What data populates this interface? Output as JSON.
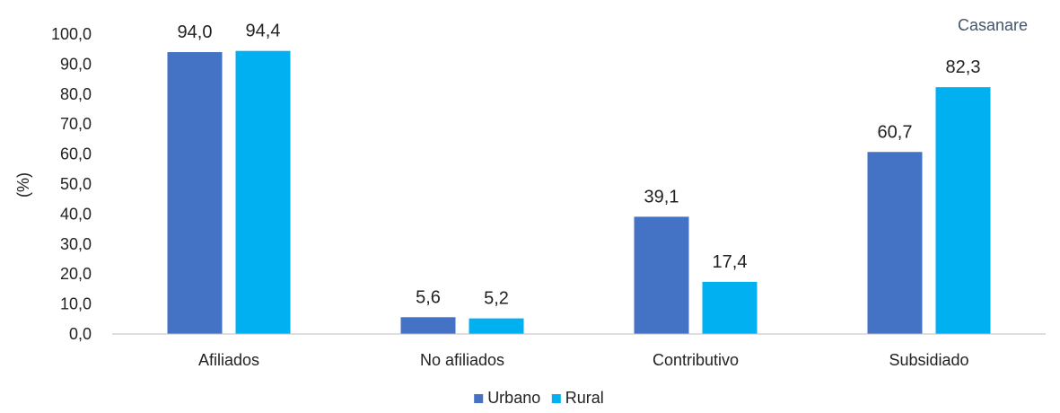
{
  "chart_data": {
    "type": "bar",
    "title": "Casanare",
    "ylabel": "(%)",
    "xlabel": "",
    "ylim": [
      0,
      100
    ],
    "yticks": [
      "0,0",
      "10,0",
      "20,0",
      "30,0",
      "40,0",
      "50,0",
      "60,0",
      "70,0",
      "80,0",
      "90,0",
      "100,0"
    ],
    "categories": [
      "Afiliados",
      "No afiliados",
      "Contributivo",
      "Subsidiado"
    ],
    "series": [
      {
        "name": "Urbano",
        "color": "#4472C4",
        "values": [
          94.0,
          5.6,
          39.1,
          60.7
        ],
        "labels": [
          "94,0",
          "5,6",
          "39,1",
          "60,7"
        ]
      },
      {
        "name": "Rural",
        "color": "#00B0F0",
        "values": [
          94.4,
          5.2,
          17.4,
          82.3
        ],
        "labels": [
          "94,4",
          "5,2",
          "17,4",
          "82,3"
        ]
      }
    ],
    "legend_position": "bottom",
    "grid": false,
    "title_color": "#44546A"
  }
}
